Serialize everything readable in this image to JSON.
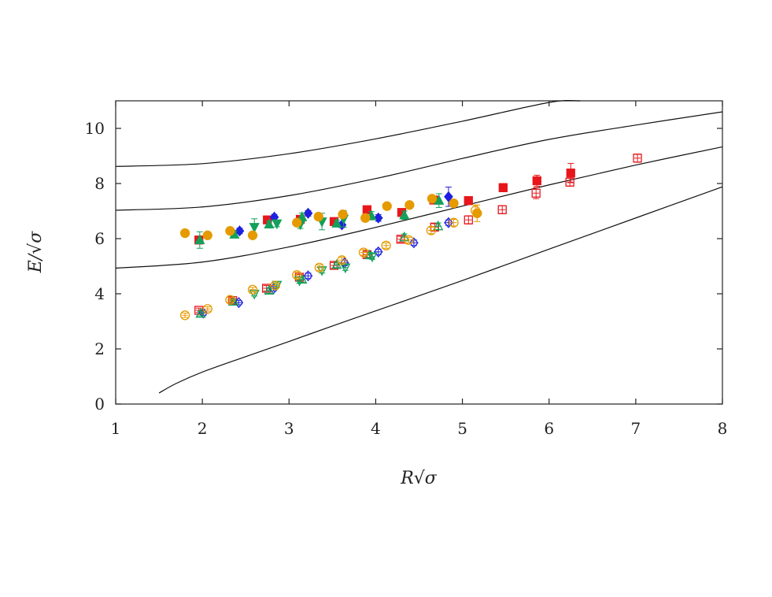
{
  "chart_data": {
    "type": "scatter",
    "title": "",
    "xlabel": "R√σ",
    "ylabel": "E/√σ",
    "xlim": [
      1,
      8
    ],
    "ylim": [
      0,
      11
    ],
    "xticks": [
      1,
      2,
      3,
      4,
      5,
      6,
      7,
      8
    ],
    "yticks": [
      0,
      2,
      4,
      6,
      8,
      10
    ],
    "grid": false,
    "colors": {
      "red": "#e8161b",
      "blue": "#1f1fe0",
      "green": "#13a05a",
      "orange": "#e59a00"
    },
    "curves": [
      {
        "points": [
          [
            1.0,
            8.62
          ],
          [
            2.0,
            8.72
          ],
          [
            3.0,
            9.08
          ],
          [
            4.0,
            9.62
          ],
          [
            5.0,
            10.26
          ],
          [
            6.0,
            10.94
          ],
          [
            6.36,
            11.0
          ]
        ]
      },
      {
        "points": [
          [
            1.0,
            7.03
          ],
          [
            2.0,
            7.15
          ],
          [
            3.0,
            7.56
          ],
          [
            4.0,
            8.18
          ],
          [
            5.0,
            8.91
          ],
          [
            6.0,
            9.6
          ],
          [
            7.0,
            10.12
          ],
          [
            8.0,
            10.6
          ]
        ]
      },
      {
        "points": [
          [
            1.0,
            4.93
          ],
          [
            2.0,
            5.15
          ],
          [
            3.0,
            5.7
          ],
          [
            4.0,
            6.41
          ],
          [
            5.0,
            7.18
          ],
          [
            6.0,
            7.95
          ],
          [
            7.0,
            8.67
          ],
          [
            8.0,
            9.33
          ]
        ]
      },
      {
        "points": [
          [
            1.5,
            0.4
          ],
          [
            1.7,
            0.75
          ],
          [
            2.0,
            1.16
          ],
          [
            2.5,
            1.72
          ],
          [
            3.0,
            2.27
          ],
          [
            3.5,
            2.83
          ],
          [
            4.0,
            3.38
          ],
          [
            5.0,
            4.48
          ],
          [
            6.0,
            5.62
          ],
          [
            7.0,
            6.75
          ],
          [
            8.0,
            7.88
          ]
        ]
      }
    ],
    "series": [
      {
        "marker": "square",
        "fill": "filled",
        "color": "#e8161b",
        "x": [
          1.96,
          2.75,
          3.13,
          3.52,
          3.9,
          4.3,
          4.67,
          5.07,
          5.47,
          5.86,
          6.25
        ],
        "y": [
          5.95,
          6.68,
          6.7,
          6.62,
          7.05,
          6.95,
          7.4,
          7.38,
          7.85,
          8.1,
          8.38
        ],
        "err": [
          0.1,
          0.1,
          0.12,
          0.1,
          0.12,
          0.1,
          0.12,
          0.1,
          0.15,
          0.2,
          0.35
        ]
      },
      {
        "marker": "diamond",
        "fill": "filled",
        "color": "#1f1fe0",
        "x": [
          2.43,
          2.83,
          3.22,
          3.61,
          4.03,
          4.84
        ],
        "y": [
          6.28,
          6.78,
          6.92,
          6.5,
          6.75,
          7.52
        ],
        "err": [
          0.1,
          0.1,
          0.1,
          0.1,
          0.12,
          0.35
        ]
      },
      {
        "marker": "triangle-up",
        "fill": "filled",
        "color": "#13a05a",
        "x": [
          1.97,
          2.37,
          2.77,
          3.15,
          3.55,
          3.95,
          4.33,
          4.73
        ],
        "y": [
          5.95,
          6.15,
          6.52,
          6.78,
          6.55,
          6.83,
          6.85,
          7.38
        ],
        "err": [
          0.3,
          0.12,
          0.12,
          0.15,
          0.12,
          0.15,
          0.15,
          0.25
        ]
      },
      {
        "marker": "triangle-down",
        "fill": "filled",
        "color": "#13a05a",
        "x": [
          2.6,
          2.86,
          3.13,
          3.38,
          3.63
        ],
        "y": [
          6.42,
          6.55,
          6.52,
          6.62,
          6.72
        ],
        "err": [
          0.3,
          0.12,
          0.15,
          0.3,
          0.3
        ]
      },
      {
        "marker": "circle",
        "fill": "filled",
        "color": "#e59a00",
        "x": [
          1.8,
          2.06,
          2.32,
          2.58,
          3.09,
          3.34,
          3.62,
          3.88,
          4.13,
          4.39,
          4.65,
          4.9,
          5.17
        ],
        "y": [
          6.2,
          6.12,
          6.28,
          6.12,
          6.58,
          6.8,
          6.88,
          6.75,
          7.18,
          7.22,
          7.45,
          7.28,
          6.92
        ],
        "err": [
          0.1,
          0.08,
          0.08,
          0.1,
          0.1,
          0.08,
          0.1,
          0.08,
          0.08,
          0.08,
          0.1,
          0.08,
          0.3
        ]
      },
      {
        "marker": "square",
        "fill": "open",
        "color": "#e8161b",
        "x": [
          1.96,
          2.35,
          2.74,
          3.12,
          3.52,
          3.9,
          4.29,
          4.68,
          5.07,
          5.46,
          5.85,
          6.24,
          7.02
        ],
        "y": [
          3.4,
          3.75,
          4.2,
          4.6,
          5.03,
          5.42,
          5.98,
          6.42,
          6.68,
          7.05,
          7.65,
          8.05,
          8.92
        ],
        "err": [
          0.08,
          0.08,
          0.1,
          0.1,
          0.1,
          0.1,
          0.1,
          0.12,
          0.15,
          0.15,
          0.2,
          0.15,
          0.15
        ]
      },
      {
        "marker": "diamond",
        "fill": "open",
        "color": "#1f1fe0",
        "x": [
          2.01,
          2.42,
          2.82,
          3.22,
          3.64,
          4.03,
          4.44,
          4.84
        ],
        "y": [
          3.3,
          3.68,
          4.18,
          4.65,
          5.12,
          5.52,
          5.85,
          6.58
        ],
        "err": [
          0.08,
          0.08,
          0.08,
          0.1,
          0.1,
          0.1,
          0.1,
          0.1
        ]
      },
      {
        "marker": "triangle-up",
        "fill": "open",
        "color": "#13a05a",
        "x": [
          1.98,
          2.36,
          2.77,
          3.15,
          3.55,
          3.93,
          4.33,
          4.72
        ],
        "y": [
          3.28,
          3.72,
          4.12,
          4.52,
          5.05,
          5.4,
          6.05,
          6.45
        ],
        "err": [
          0.08,
          0.08,
          0.1,
          0.1,
          0.1,
          0.1,
          0.12,
          0.12
        ]
      },
      {
        "marker": "triangle-down",
        "fill": "open",
        "color": "#13a05a",
        "x": [
          2.6,
          2.86,
          3.12,
          3.38,
          3.65,
          3.96
        ],
        "y": [
          4.0,
          4.32,
          4.48,
          4.85,
          4.95,
          5.35
        ],
        "err": [
          0.08,
          0.08,
          0.1,
          0.1,
          0.1,
          0.1
        ]
      },
      {
        "marker": "circle",
        "fill": "open",
        "color": "#e59a00",
        "x": [
          1.8,
          2.06,
          2.32,
          2.58,
          2.84,
          3.09,
          3.35,
          3.61,
          3.86,
          4.12,
          4.38,
          4.64,
          4.9,
          5.15
        ],
        "y": [
          3.22,
          3.45,
          3.78,
          4.15,
          4.3,
          4.68,
          4.95,
          5.22,
          5.5,
          5.75,
          5.95,
          6.3,
          6.58,
          7.02
        ],
        "err": [
          0.08,
          0.08,
          0.08,
          0.08,
          0.08,
          0.1,
          0.1,
          0.1,
          0.1,
          0.1,
          0.1,
          0.12,
          0.12,
          0.2
        ]
      }
    ]
  }
}
